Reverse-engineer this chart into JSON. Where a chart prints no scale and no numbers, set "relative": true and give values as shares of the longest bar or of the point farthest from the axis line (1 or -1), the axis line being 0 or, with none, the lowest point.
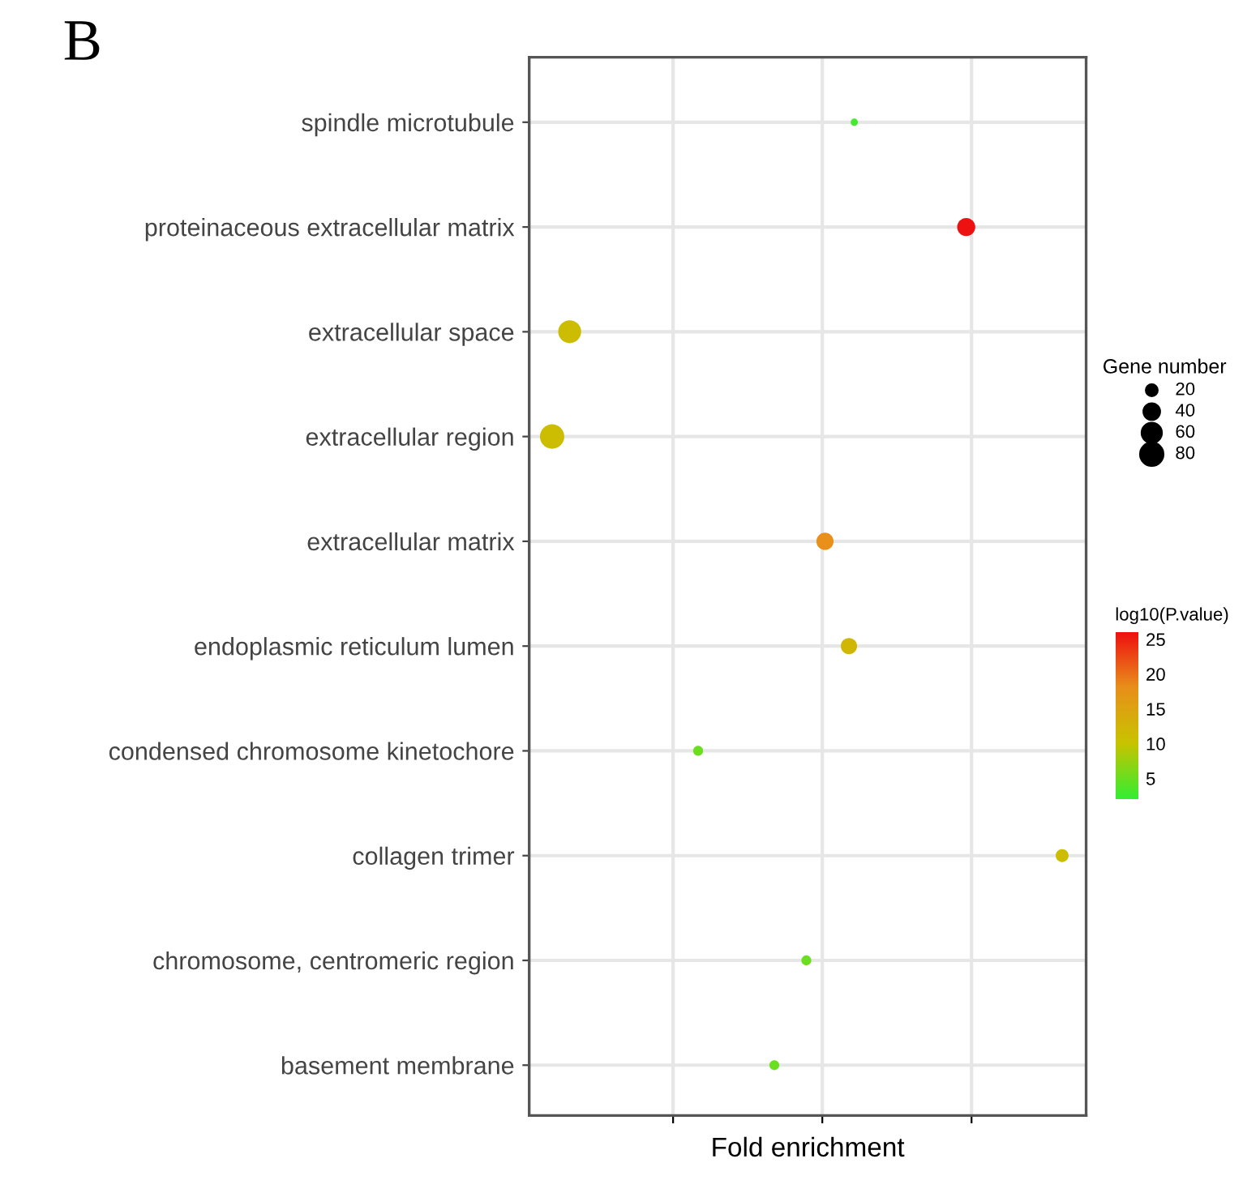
{
  "chart_data": {
    "type": "bubble",
    "categories": [
      "spindle microtubule",
      "proteinaceous extracellular matrix",
      "extracellular space",
      "extracellular region",
      "extracellular matrix",
      "endoplasmic reticulum lumen",
      "condensed chromosome kinetochore",
      "collagen trimer",
      "chromosome, centromeric region",
      "basement membrane"
    ],
    "orientation": "horizontal",
    "relative": true,
    "values": [
      0.61,
      0.82,
      0.076,
      0.043,
      0.555,
      0.6,
      0.317,
      1.0,
      0.52,
      0.46
    ],
    "sizes": [
      8,
      50,
      80,
      90,
      45,
      40,
      15,
      25,
      15,
      15
    ],
    "size_legend": [
      20,
      40,
      60,
      80
    ],
    "cvalues": [
      3,
      26,
      11,
      11,
      18,
      12,
      5,
      11,
      5,
      5
    ],
    "clim": [
      2,
      26
    ],
    "cticks": [
      5,
      10,
      15,
      20,
      25
    ],
    "xlabel": "Fold enrichment",
    "legend_title": "Gene number",
    "clabel": "log10(P.value)",
    "grid": true,
    "annotations": [
      "B"
    ]
  }
}
